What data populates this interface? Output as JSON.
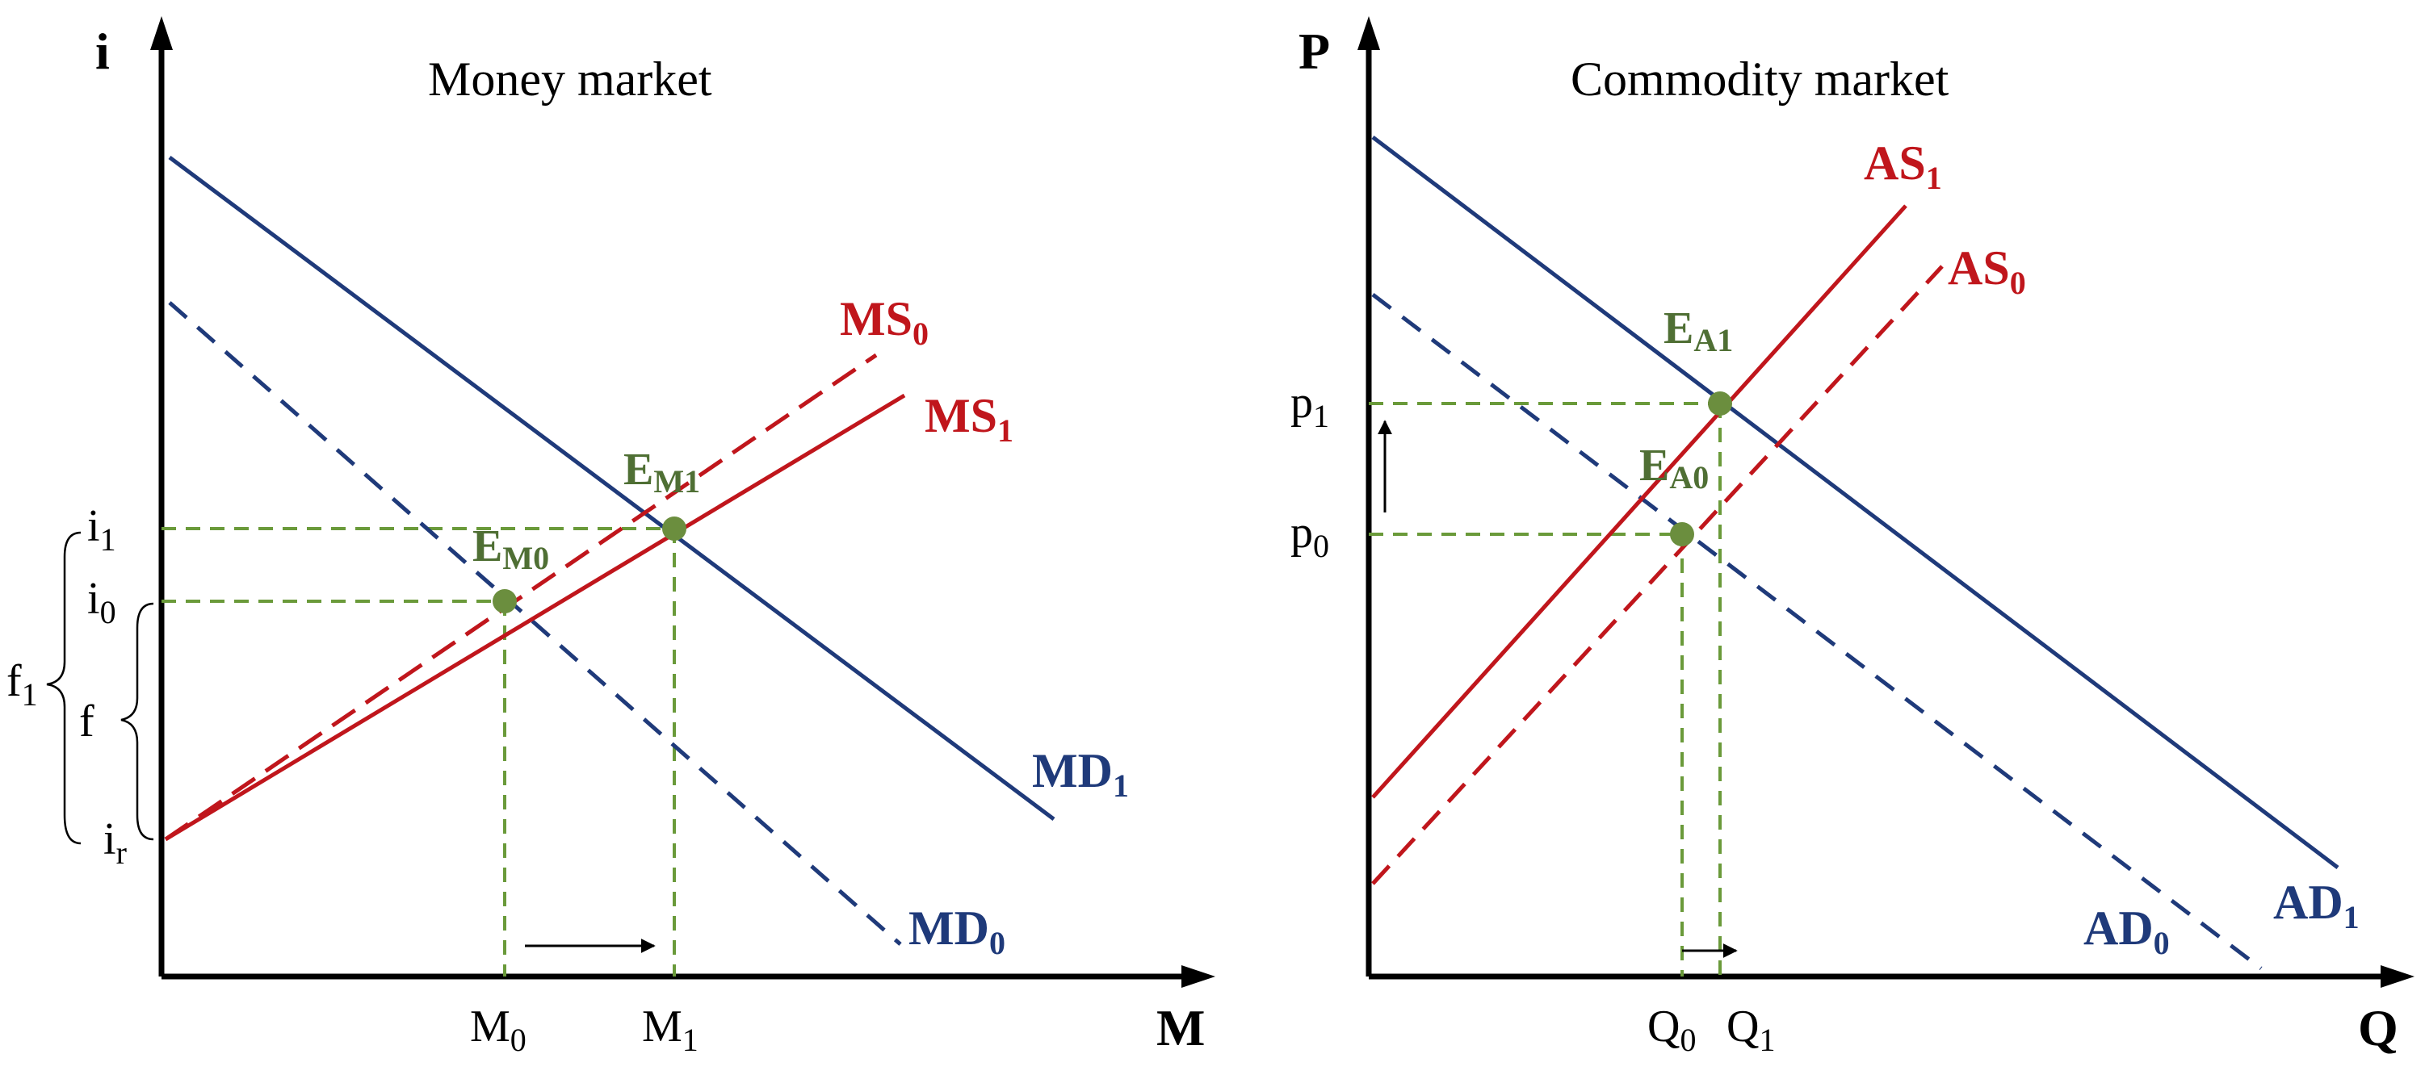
{
  "colors": {
    "supply": "#c0161c",
    "demand": "#1f3a7a",
    "guide": "#6a9a3a",
    "point": "#6b8e3e",
    "axis": "#000000"
  },
  "money": {
    "title": "Money market",
    "y_axis": "i",
    "x_axis": "M",
    "i1": {
      "base": "i",
      "sub": "1"
    },
    "i0": {
      "base": "i",
      "sub": "0"
    },
    "ir": {
      "base": "i",
      "sub": "r"
    },
    "f1": {
      "base": "f",
      "sub": "1"
    },
    "f": "f",
    "M0": {
      "base": "M",
      "sub": "0"
    },
    "M1": {
      "base": "M",
      "sub": "1"
    },
    "MS0": {
      "base": "MS",
      "sub": "0"
    },
    "MS1": {
      "base": "MS",
      "sub": "1"
    },
    "MD0": {
      "base": "MD",
      "sub": "0"
    },
    "MD1": {
      "base": "MD",
      "sub": "1"
    },
    "EM0": {
      "base": "E",
      "sub": "M0"
    },
    "EM1": {
      "base": "E",
      "sub": "M1"
    }
  },
  "commodity": {
    "title": "Commodity market",
    "y_axis": "P",
    "x_axis": "Q",
    "p1": {
      "base": "p",
      "sub": "1"
    },
    "p0": {
      "base": "p",
      "sub": "0"
    },
    "Q0": {
      "base": "Q",
      "sub": "0"
    },
    "Q1": {
      "base": "Q",
      "sub": "1"
    },
    "AS0": {
      "base": "AS",
      "sub": "0"
    },
    "AS1": {
      "base": "AS",
      "sub": "1"
    },
    "AD0": {
      "base": "AD",
      "sub": "0"
    },
    "AD1": {
      "base": "AD",
      "sub": "1"
    },
    "EA0": {
      "base": "E",
      "sub": "A0"
    },
    "EA1": {
      "base": "E",
      "sub": "A1"
    }
  }
}
